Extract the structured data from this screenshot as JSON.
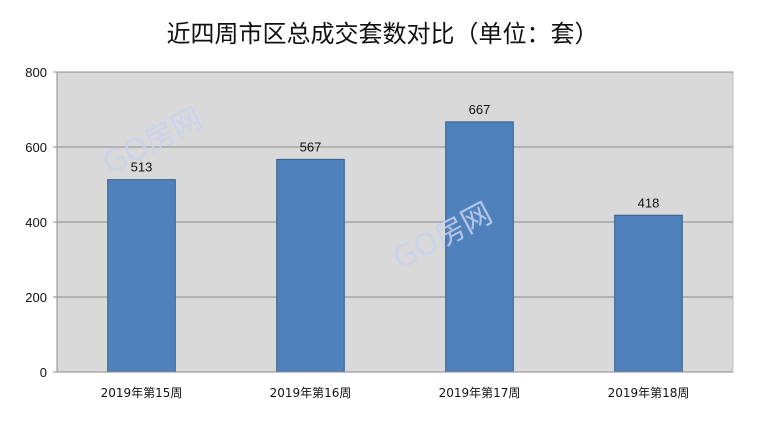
{
  "chart_data": {
    "type": "bar",
    "title": "近四周市区总成交套数对比（单位：套）",
    "categories": [
      "2019年第15周",
      "2019年第16周",
      "2019年第17周",
      "2019年第18周"
    ],
    "values": [
      513,
      567,
      667,
      418
    ],
    "ylim": [
      0,
      800
    ],
    "yticks": [
      0,
      200,
      400,
      600,
      800
    ],
    "grid": true,
    "bar_color": "#4f81bd",
    "plot_background": "#d9d9d9"
  },
  "watermark": "GO房网"
}
